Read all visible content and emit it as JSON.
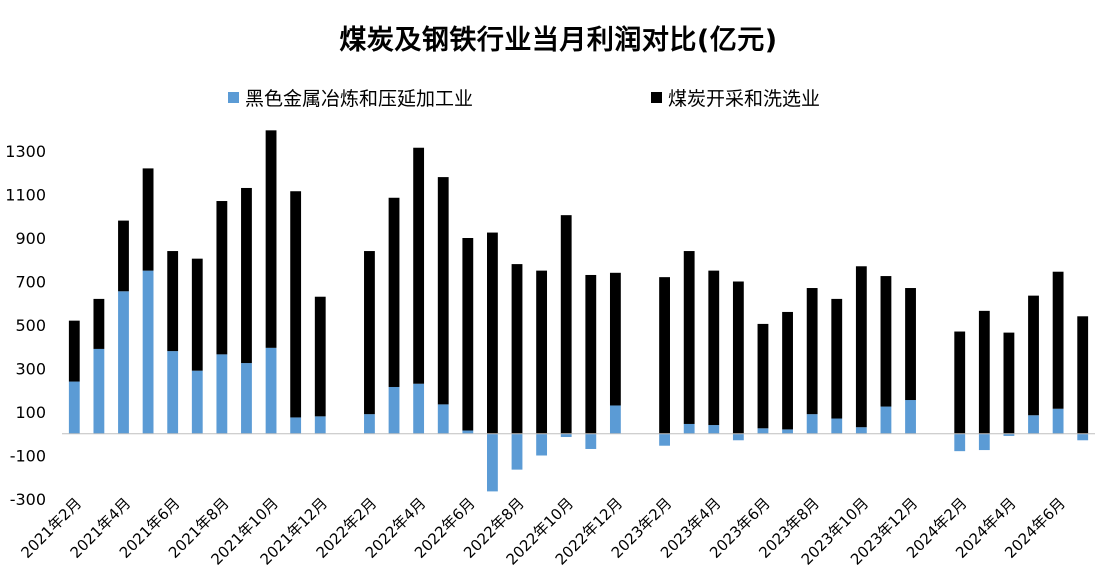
{
  "chart_data": {
    "type": "bar",
    "stacked": true,
    "title": "煤炭及钢铁行业当月利润对比(亿元)",
    "xlabel": "",
    "ylabel": "",
    "ylim": [
      -300,
      1400
    ],
    "yticks": [
      "1300",
      "1100",
      "900",
      "700",
      "500",
      "300",
      "100",
      "-100",
      "-300"
    ],
    "ytick_values": [
      1300,
      1100,
      900,
      700,
      500,
      300,
      100,
      -100,
      -300
    ],
    "grid": false,
    "legend_position": "top",
    "categories": [
      "2021年2月",
      "2021年3月",
      "2021年4月",
      "2021年5月",
      "2021年6月",
      "2021年7月",
      "2021年8月",
      "2021年9月",
      "2021年10月",
      "2021年11月",
      "2021年12月",
      "2022年1月",
      "2022年2月",
      "2022年3月",
      "2022年4月",
      "2022年5月",
      "2022年6月",
      "2022年7月",
      "2022年8月",
      "2022年9月",
      "2022年10月",
      "2022年11月",
      "2022年12月",
      "2023年1月",
      "2023年2月",
      "2023年3月",
      "2023年4月",
      "2023年5月",
      "2023年6月",
      "2023年7月",
      "2023年8月",
      "2023年9月",
      "2023年10月",
      "2023年11月",
      "2023年12月",
      "2024年1月",
      "2024年2月",
      "2024年3月",
      "2024年4月",
      "2024年5月",
      "2024年6月",
      "2024年7月"
    ],
    "xtick_labels": [
      "2021年2月",
      "2021年4月",
      "2021年6月",
      "2021年8月",
      "2021年10月",
      "2021年12月",
      "2022年2月",
      "2022年4月",
      "2022年6月",
      "2022年8月",
      "2022年10月",
      "2022年12月",
      "2023年2月",
      "2023年4月",
      "2023年6月",
      "2023年8月",
      "2023年10月",
      "2023年12月",
      "2024年2月",
      "2024年4月",
      "2024年6月"
    ],
    "series": [
      {
        "name": "黑色金属冶炼和压延加工业",
        "color": "#5b9bd5",
        "values": [
          240,
          390,
          655,
          750,
          380,
          290,
          365,
          325,
          395,
          75,
          80,
          null,
          90,
          215,
          230,
          135,
          15,
          -265,
          -165,
          -100,
          -15,
          -70,
          130,
          null,
          -55,
          45,
          40,
          -30,
          25,
          20,
          90,
          70,
          30,
          125,
          155,
          null,
          -80,
          -75,
          -10,
          85,
          115,
          -30
        ]
      },
      {
        "name": "煤炭开采和洗选业",
        "color": "#000000",
        "values": [
          280,
          230,
          325,
          470,
          460,
          515,
          705,
          805,
          1000,
          1040,
          550,
          null,
          750,
          870,
          1085,
          1045,
          885,
          925,
          780,
          750,
          1005,
          730,
          610,
          null,
          720,
          795,
          710,
          700,
          480,
          540,
          580,
          550,
          740,
          600,
          515,
          null,
          470,
          565,
          465,
          550,
          630,
          540
        ]
      }
    ]
  }
}
